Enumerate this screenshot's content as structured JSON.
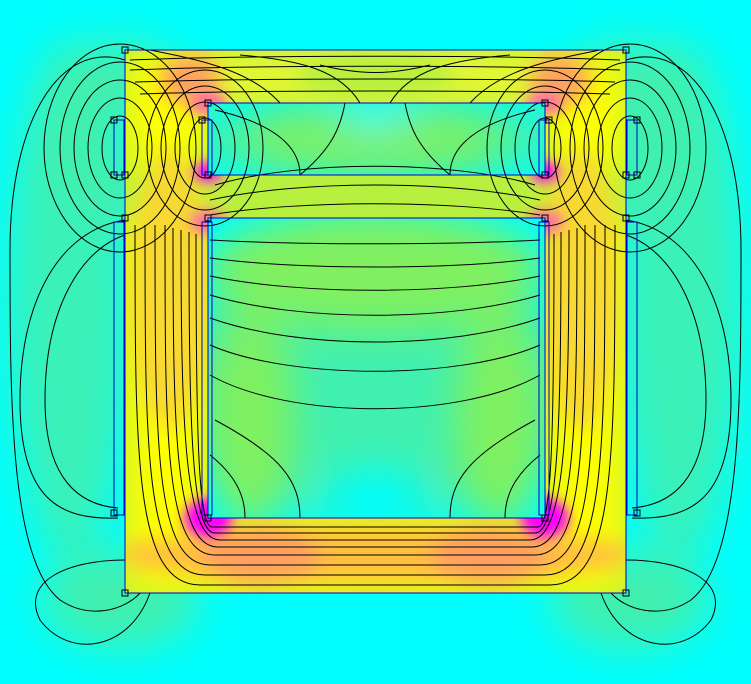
{
  "plot": {
    "type": "magnetic-field-density-map",
    "outline_color": "#0000cc",
    "flux_line_color": "#000000",
    "colormap": [
      "#00ffff",
      "#40f0b0",
      "#80f060",
      "#c0f030",
      "#ffff00",
      "#ffc040",
      "#ff70a0",
      "#ff00ff"
    ]
  }
}
